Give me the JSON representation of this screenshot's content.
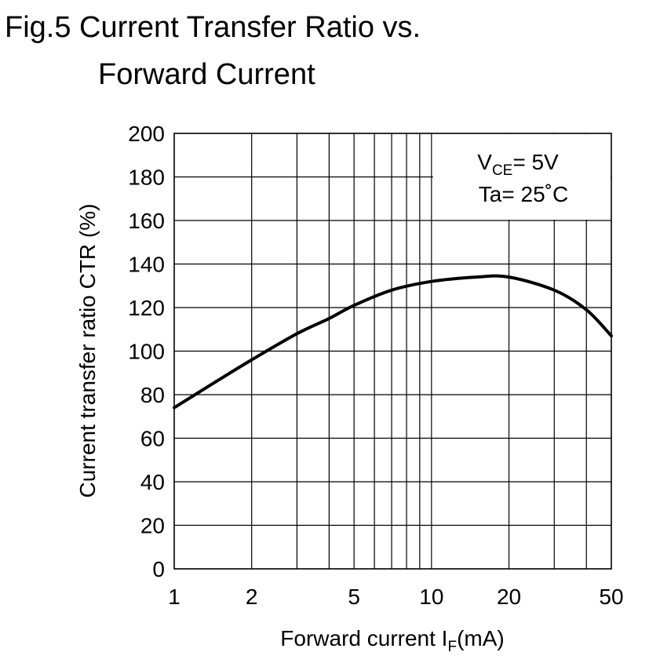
{
  "title_line1": "Fig.5 Current Transfer Ratio vs.",
  "title_line2": "Forward Current",
  "conditions": {
    "vce": {
      "main": "V",
      "sub": "CE",
      "rest": "= 5V"
    },
    "ta": "Ta= 25˚C"
  },
  "chart_data": {
    "type": "line",
    "title": "Fig.5 Current Transfer Ratio vs. Forward Current",
    "xlabel": {
      "main": "Forward current I",
      "sub": "F",
      "rest": "(mA)"
    },
    "ylabel": "Current transfer ratio CTR (%)",
    "x_scale": "log",
    "xlim": [
      1,
      50
    ],
    "ylim": [
      0,
      200
    ],
    "x_ticks": [
      1,
      2,
      5,
      10,
      20,
      50
    ],
    "x_tick_labels": [
      "1",
      "2",
      "5",
      "10",
      "20",
      "50"
    ],
    "x_gridlines": [
      1,
      2,
      3,
      4,
      5,
      6,
      7,
      8,
      9,
      10,
      20,
      30,
      40,
      50
    ],
    "y_ticks": [
      0,
      20,
      40,
      60,
      80,
      100,
      120,
      140,
      160,
      180,
      200
    ],
    "y_tick_labels": [
      "0",
      "20",
      "40",
      "60",
      "80",
      "100",
      "120",
      "140",
      "160",
      "180",
      "200"
    ],
    "grid": true,
    "series": [
      {
        "x": [
          1,
          1.5,
          2,
          3,
          4,
          5,
          7,
          10,
          15,
          20,
          30,
          40,
          50
        ],
        "y": [
          74,
          87,
          96,
          108,
          115,
          121,
          128,
          132,
          134,
          134,
          128,
          119,
          107
        ]
      }
    ]
  }
}
